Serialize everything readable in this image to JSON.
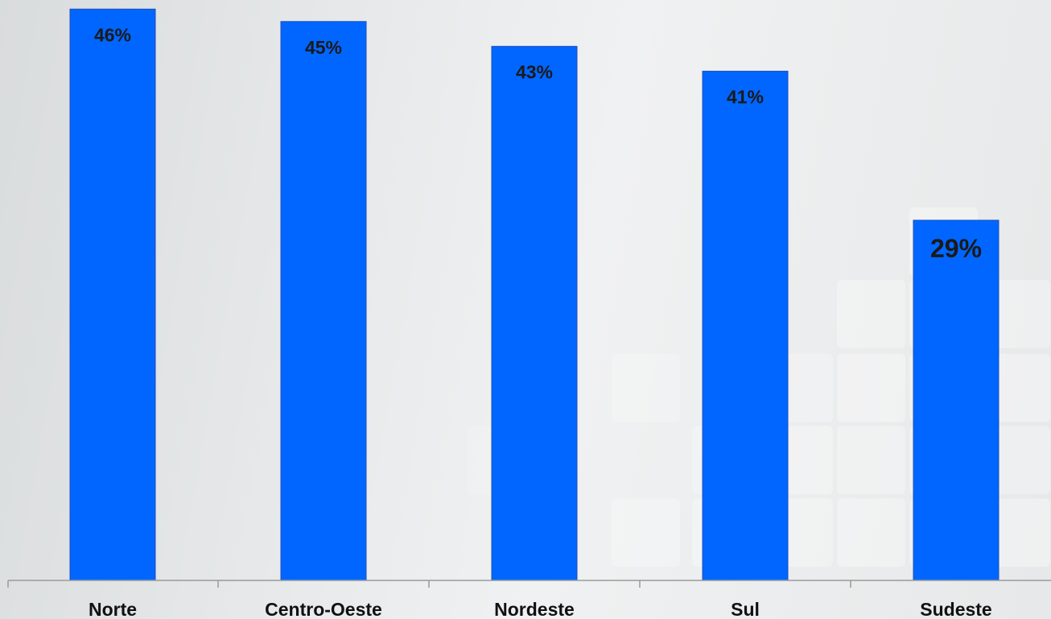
{
  "chart_data": {
    "type": "bar",
    "categories": [
      "Norte",
      "Centro-Oeste",
      "Nordeste",
      "Sul",
      "Sudeste"
    ],
    "values": [
      46,
      45,
      43,
      41,
      29
    ],
    "value_labels": [
      "46%",
      "45%",
      "43%",
      "41%",
      "29%"
    ],
    "unit": "%",
    "title": "",
    "xlabel": "",
    "ylabel": "",
    "grid": false,
    "legend": "none",
    "bar_color": "#0066ff"
  }
}
